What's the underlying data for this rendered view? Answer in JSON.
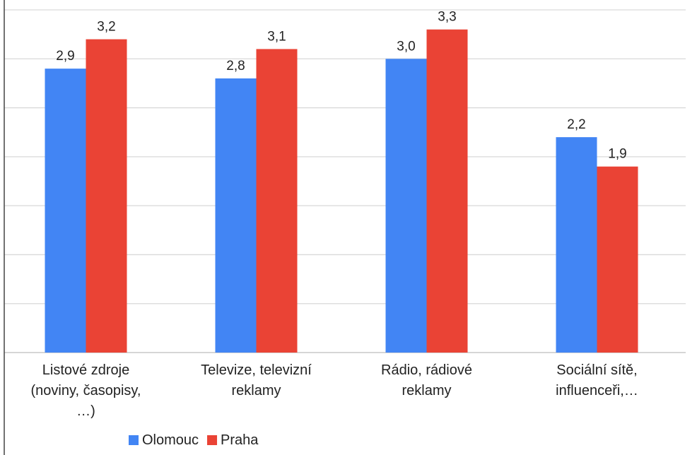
{
  "chart_data": {
    "type": "bar",
    "categories": [
      [
        "Listové zdroje",
        "(noviny, časopisy,",
        "…)"
      ],
      [
        "Televize, televizní",
        "reklamy"
      ],
      [
        "Rádio, rádiové",
        "reklamy"
      ],
      [
        "Sociální sítě,",
        "influenceři,…"
      ]
    ],
    "series": [
      {
        "name": "Olomouc",
        "color": "#4285f4",
        "values": [
          2.9,
          2.8,
          3.0,
          2.2
        ],
        "labels": [
          "2,9",
          "2,8",
          "3,0",
          "2,2"
        ]
      },
      {
        "name": "Praha",
        "color": "#ea4335",
        "values": [
          3.2,
          3.1,
          3.3,
          1.9
        ],
        "labels": [
          "3,2",
          "3,1",
          "3,3",
          "1,9"
        ]
      }
    ],
    "ylim": [
      0,
      3.5
    ],
    "grid": true,
    "legend": "bottom"
  }
}
